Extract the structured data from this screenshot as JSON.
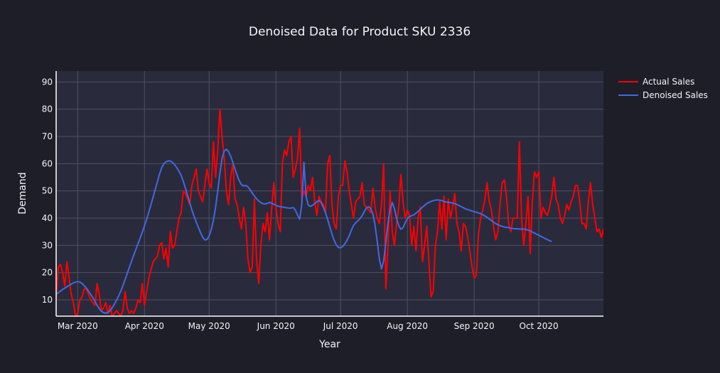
{
  "colors": {
    "paper_bg": "#1e1e28",
    "plot_bg": "#2a2a3d",
    "grid": "#4f5160",
    "axis_line": "#ffffff",
    "text": "#f2f5fa",
    "actual_color": "#ff0000",
    "denoised_color": "#4169e1"
  },
  "chart_data": {
    "type": "line",
    "title": "Denoised Data for Product SKU 2336",
    "xlabel": "Year",
    "ylabel": "Demand",
    "x_start_date": "2020-02-20",
    "x_end_date": "2020-10-31",
    "xlim": [
      "2020-02-20",
      "2020-10-31"
    ],
    "ylim": [
      4,
      94
    ],
    "y_ticks": [
      10,
      20,
      30,
      40,
      50,
      60,
      70,
      80,
      90
    ],
    "x_ticks": [
      {
        "date": "2020-03-01",
        "label": "Mar 2020"
      },
      {
        "date": "2020-04-01",
        "label": "Apr 2020"
      },
      {
        "date": "2020-05-01",
        "label": "May 2020"
      },
      {
        "date": "2020-06-01",
        "label": "Jun 2020"
      },
      {
        "date": "2020-07-01",
        "label": "Jul 2020"
      },
      {
        "date": "2020-08-01",
        "label": "Aug 2020"
      },
      {
        "date": "2020-09-01",
        "label": "Sep 2020"
      },
      {
        "date": "2020-10-01",
        "label": "Oct 2020"
      }
    ],
    "grid": true,
    "legend_position": "top-right",
    "series": [
      {
        "name": "Actual Sales",
        "color": "#ff0000",
        "values": [
          10,
          22,
          23,
          20,
          15,
          24,
          18,
          12,
          9,
          4,
          5,
          10,
          11,
          14,
          14,
          12,
          10,
          9,
          8,
          16,
          12,
          6,
          7,
          9,
          5,
          8,
          4,
          5,
          6,
          5,
          4,
          6,
          13,
          7,
          5,
          6,
          5,
          7,
          10,
          9,
          16,
          8,
          13,
          18,
          21,
          24,
          25,
          26,
          30,
          31,
          25,
          29,
          22,
          35,
          29,
          30,
          35,
          40,
          42,
          50,
          49,
          47,
          45,
          52,
          55,
          58,
          50,
          48,
          46,
          52,
          58,
          53,
          51,
          68,
          55,
          65,
          80,
          70,
          62,
          50,
          45,
          55,
          60,
          47,
          45,
          40,
          36,
          44,
          38,
          25,
          20,
          22,
          47,
          25,
          16,
          30,
          38,
          35,
          42,
          32,
          43,
          53,
          44,
          38,
          35,
          60,
          65,
          63,
          68,
          70,
          55,
          58,
          62,
          73,
          47,
          50,
          48,
          52,
          50,
          55,
          46,
          41,
          48,
          46,
          45,
          42,
          60,
          63,
          45,
          38,
          36,
          48,
          52,
          52,
          61,
          57,
          50,
          45,
          40,
          46,
          47,
          48,
          53,
          45,
          44,
          43,
          42,
          51,
          44,
          40,
          38,
          45,
          60,
          14,
          30,
          50,
          35,
          30,
          38,
          44,
          56,
          46,
          40,
          43,
          41,
          30,
          37,
          28,
          40,
          44,
          24,
          30,
          37,
          24,
          11,
          13,
          30,
          35,
          46,
          36,
          48,
          32,
          47,
          40,
          44,
          49,
          38,
          35,
          28,
          38,
          37,
          33,
          28,
          22,
          18,
          19,
          34,
          40,
          43,
          47,
          53,
          46,
          43,
          37,
          32,
          35,
          45,
          53,
          54,
          48,
          38,
          35,
          40,
          40,
          40,
          68,
          40,
          30,
          38,
          48,
          27,
          46,
          57,
          55,
          57,
          40,
          44,
          42,
          41,
          44,
          48,
          55,
          47,
          45,
          40,
          38,
          41,
          45,
          43,
          46,
          48,
          52,
          52,
          46,
          38,
          38,
          36,
          46,
          53,
          45,
          40,
          35,
          36,
          33,
          36,
          23,
          36,
          37,
          34,
          40,
          46,
          40,
          36,
          25,
          33,
          38,
          42,
          46,
          50,
          43,
          38,
          33,
          30,
          33,
          34,
          38,
          45,
          58,
          57,
          38,
          40,
          43,
          30,
          38,
          31,
          38,
          18,
          29,
          38,
          25,
          34,
          35,
          41,
          37,
          33
        ]
      },
      {
        "name": "Denoised Sales",
        "color": "#4169e1",
        "values": [
          12,
          12.6,
          13.2,
          13.8,
          14.3,
          14.8,
          15.3,
          15.8,
          16.2,
          16.5,
          16.7,
          16.5,
          16,
          15.2,
          14.3,
          13.2,
          12,
          10.8,
          9.5,
          8,
          6.8,
          5.8,
          5.3,
          5.1,
          5.3,
          6,
          7,
          8.4,
          9.8,
          11.4,
          13.2,
          15.2,
          17.4,
          19.7,
          22,
          24.2,
          26.4,
          28.5,
          30.6,
          32.7,
          34.9,
          37.2,
          39.6,
          42.2,
          44.9,
          47.7,
          50.6,
          53.4,
          56.2,
          58.5,
          60,
          60.7,
          61,
          61,
          60.5,
          59.6,
          58.5,
          57.2,
          55.7,
          53.5,
          51,
          48.3,
          45.6,
          43,
          40.7,
          38.6,
          36.6,
          34.7,
          33,
          32,
          32.1,
          33.5,
          35.8,
          39.3,
          44,
          50,
          56.5,
          62,
          64.6,
          65.3,
          64.4,
          62.7,
          60.5,
          58,
          55.7,
          53.7,
          52.3,
          51.8,
          52,
          51.5,
          50.4,
          49.2,
          48.1,
          47.1,
          46.3,
          45.7,
          45.3,
          45.2,
          45.4,
          45.8,
          45.5,
          45.1,
          44.7,
          44.4,
          44.2,
          44.1,
          43.9,
          43.8,
          43.7,
          43.7,
          43.9,
          43,
          41.2,
          39.6,
          45,
          60.5,
          48,
          44.8,
          44.3,
          44.7,
          45.3,
          46.1,
          46.5,
          45.7,
          44,
          42,
          39.5,
          36.8,
          34.2,
          31.9,
          30.2,
          29.2,
          29.1,
          29.6,
          30.6,
          31.9,
          33.5,
          35.5,
          37.3,
          38.3,
          39,
          39.8,
          40.9,
          42.4,
          43.7,
          44.2,
          43.5,
          41.5,
          37.5,
          31.5,
          25,
          21.3,
          24.3,
          31,
          38.2,
          43.3,
          45.7,
          43.5,
          39.8,
          37.2,
          35.9,
          36.5,
          38.3,
          39.8,
          40.6,
          40.9,
          41.2,
          41.8,
          42.5,
          43.2,
          44,
          44.7,
          45.3,
          45.8,
          46.1,
          46.4,
          46.6,
          46.7,
          46.6,
          46.4,
          46.1,
          45.9,
          45.8,
          45.7,
          45.5,
          45.3,
          45,
          44.6,
          44.2,
          43.8,
          43.4,
          43.1,
          42.9,
          42.6,
          42.4,
          42.2,
          41.9,
          41.6,
          41.2,
          40.8,
          40.3,
          39.7,
          39.1,
          38.5,
          38,
          37.6,
          37.2,
          37,
          36.7,
          36.6,
          36.5,
          36.3,
          36.2,
          36.1,
          36.1,
          36,
          36,
          36,
          35.8,
          35.6,
          35.3,
          34.9,
          34.5,
          34.1,
          33.7,
          33.3,
          32.9,
          32.5,
          32.1,
          31.7,
          31.4
        ]
      }
    ]
  }
}
